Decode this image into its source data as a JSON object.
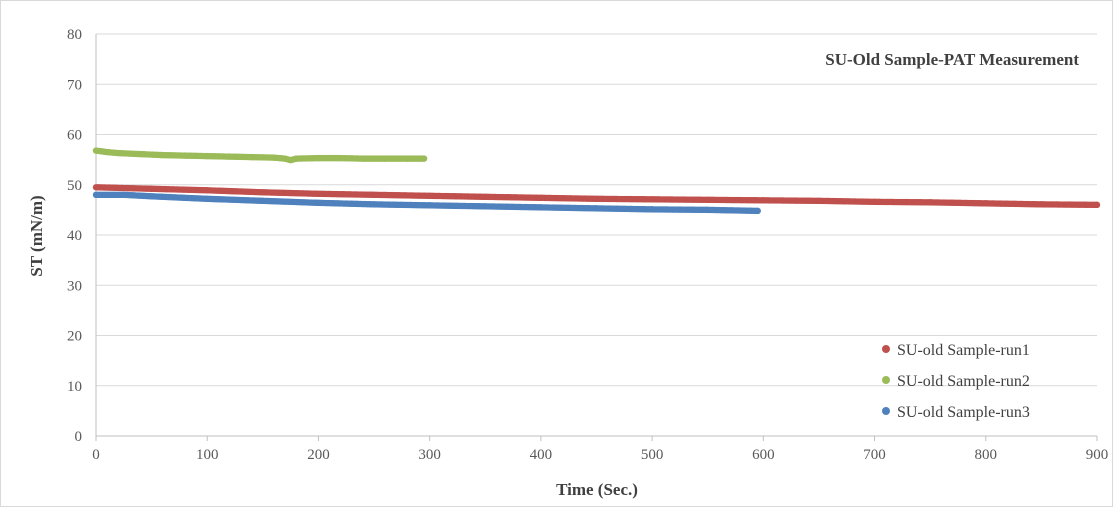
{
  "chart_data": {
    "type": "scatter",
    "title": "SU-Old Sample-PAT Measurement",
    "xlabel": "Time  (Sec.)",
    "ylabel": "ST (mN/m)",
    "xlim": [
      0,
      900
    ],
    "ylim": [
      0,
      80
    ],
    "xticks": [
      0,
      100,
      200,
      300,
      400,
      500,
      600,
      700,
      800,
      900
    ],
    "yticks": [
      0,
      10,
      20,
      30,
      40,
      50,
      60,
      70,
      80
    ],
    "grid": "horizontal",
    "legend_position": "bottom-right",
    "series": [
      {
        "name": "SU-old Sample-run1",
        "color": "#c0504d",
        "points": [
          [
            0,
            49.5
          ],
          [
            50,
            49.2
          ],
          [
            100,
            48.9
          ],
          [
            150,
            48.5
          ],
          [
            200,
            48.2
          ],
          [
            250,
            48.0
          ],
          [
            300,
            47.8
          ],
          [
            350,
            47.6
          ],
          [
            400,
            47.4
          ],
          [
            450,
            47.2
          ],
          [
            500,
            47.1
          ],
          [
            550,
            47.0
          ],
          [
            600,
            46.9
          ],
          [
            650,
            46.8
          ],
          [
            700,
            46.6
          ],
          [
            750,
            46.5
          ],
          [
            800,
            46.3
          ],
          [
            850,
            46.1
          ],
          [
            900,
            46.0
          ]
        ]
      },
      {
        "name": "SU-old Sample-run2",
        "color": "#9bbb59",
        "points": [
          [
            0,
            56.8
          ],
          [
            10,
            56.5
          ],
          [
            20,
            56.3
          ],
          [
            40,
            56.1
          ],
          [
            60,
            55.9
          ],
          [
            80,
            55.8
          ],
          [
            100,
            55.7
          ],
          [
            120,
            55.6
          ],
          [
            140,
            55.5
          ],
          [
            160,
            55.4
          ],
          [
            170,
            55.2
          ],
          [
            175,
            54.9
          ],
          [
            180,
            55.2
          ],
          [
            200,
            55.3
          ],
          [
            220,
            55.3
          ],
          [
            240,
            55.2
          ],
          [
            260,
            55.2
          ],
          [
            280,
            55.2
          ],
          [
            295,
            55.2
          ]
        ]
      },
      {
        "name": "SU-old Sample-run3",
        "color": "#4f81bd",
        "points": [
          [
            0,
            48.0
          ],
          [
            25,
            48.0
          ],
          [
            50,
            47.7
          ],
          [
            100,
            47.2
          ],
          [
            150,
            46.8
          ],
          [
            200,
            46.4
          ],
          [
            250,
            46.1
          ],
          [
            300,
            45.9
          ],
          [
            350,
            45.7
          ],
          [
            400,
            45.5
          ],
          [
            450,
            45.3
          ],
          [
            500,
            45.1
          ],
          [
            550,
            45.0
          ],
          [
            595,
            44.8
          ]
        ]
      }
    ]
  }
}
